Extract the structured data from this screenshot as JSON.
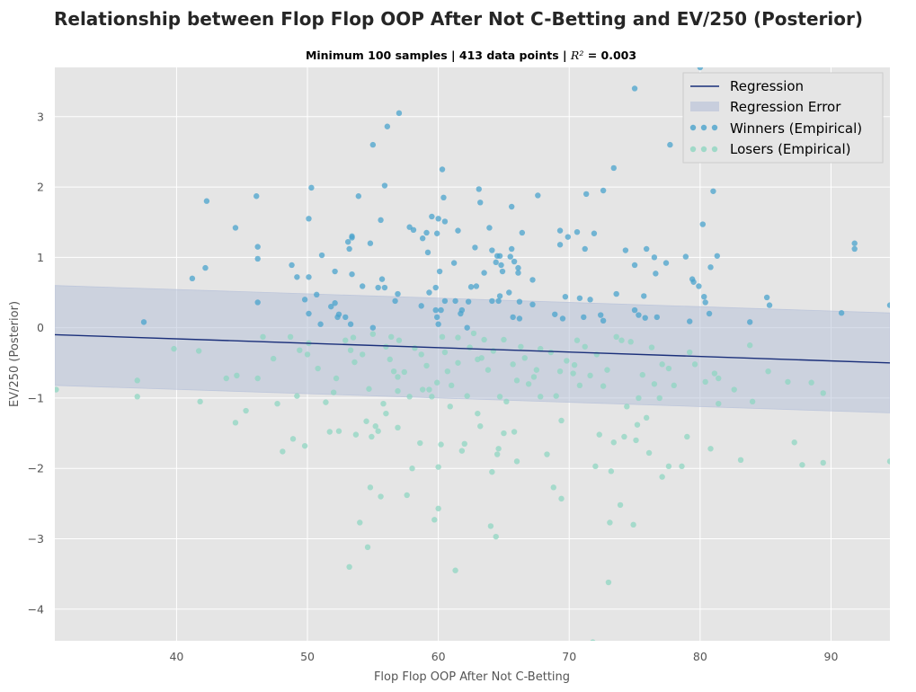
{
  "chart_data": {
    "type": "scatter",
    "title": "Relationship between Flop Flop OOP After Not C-Betting and EV/250 (Posterior)",
    "subtitle_text": "Minimum 100 samples | 413 data points | ",
    "subtitle_r2_symbol": "R²",
    "subtitle_r2_value": " =  0.003",
    "xlabel": "Flop Flop OOP After Not C-Betting",
    "ylabel": "EV/250 (Posterior)",
    "xlim": [
      30.7,
      94.5
    ],
    "ylim": [
      -4.45,
      3.7
    ],
    "xticks": [
      40,
      50,
      60,
      70,
      80,
      90
    ],
    "yticks": [
      -4,
      -3,
      -2,
      -1,
      0,
      1,
      2,
      3
    ],
    "ytick_labels": [
      "−4",
      "−3",
      "−2",
      "−1",
      "0",
      "1",
      "2",
      "3"
    ],
    "grid": true,
    "legend_position": "top-right",
    "legend": [
      "Regression",
      "Regression Error",
      "Winners (Empirical)",
      "Losers (Empirical)"
    ],
    "colors": {
      "background": "#e5e5e5",
      "grid": "#ffffff",
      "regression": "#1a2f7a",
      "error_band": "#b8c2d9",
      "winners": "#4aa3cc",
      "losers": "#8fd6c1"
    },
    "regression": {
      "x": [
        30.7,
        94.5
      ],
      "y": [
        -0.1,
        -0.5
      ]
    },
    "error_band": {
      "x": [
        30.7,
        94.5
      ],
      "upper": [
        0.6,
        0.21
      ],
      "lower": [
        -0.82,
        -1.21
      ]
    },
    "winners": [
      [
        37.5,
        0.08
      ],
      [
        41.2,
        0.7
      ],
      [
        42.2,
        0.85
      ],
      [
        42.3,
        1.8
      ],
      [
        44.5,
        1.42
      ],
      [
        46.1,
        1.87
      ],
      [
        46.2,
        1.15
      ],
      [
        46.2,
        0.98
      ],
      [
        46.2,
        0.36
      ],
      [
        48.8,
        0.89
      ],
      [
        49.2,
        0.72
      ],
      [
        49.8,
        0.4
      ],
      [
        50.1,
        0.2
      ],
      [
        50.1,
        0.72
      ],
      [
        50.1,
        1.55
      ],
      [
        50.3,
        1.99
      ],
      [
        50.7,
        0.47
      ],
      [
        51.0,
        0.05
      ],
      [
        51.1,
        1.03
      ],
      [
        51.8,
        0.3
      ],
      [
        52.1,
        0.35
      ],
      [
        52.1,
        0.8
      ],
      [
        52.3,
        0.15
      ],
      [
        52.4,
        0.19
      ],
      [
        52.9,
        0.15
      ],
      [
        53.1,
        1.22
      ],
      [
        53.2,
        1.12
      ],
      [
        53.3,
        0.05
      ],
      [
        53.4,
        1.3
      ],
      [
        53.4,
        0.76
      ],
      [
        53.9,
        1.87
      ],
      [
        54.2,
        0.59
      ],
      [
        54.8,
        1.2
      ],
      [
        55.0,
        2.6
      ],
      [
        55.0,
        0.0
      ],
      [
        55.4,
        0.57
      ],
      [
        55.6,
        1.53
      ],
      [
        55.7,
        0.69
      ],
      [
        55.9,
        2.02
      ],
      [
        55.9,
        0.57
      ],
      [
        56.1,
        2.86
      ],
      [
        56.7,
        0.38
      ],
      [
        56.9,
        0.48
      ],
      [
        57.0,
        3.05
      ],
      [
        57.8,
        1.43
      ],
      [
        58.7,
        0.31
      ],
      [
        58.8,
        1.27
      ],
      [
        59.1,
        1.35
      ],
      [
        59.2,
        1.07
      ],
      [
        59.3,
        0.5
      ],
      [
        59.5,
        1.58
      ],
      [
        59.8,
        0.57
      ],
      [
        59.8,
        0.25
      ],
      [
        59.9,
        0.15
      ],
      [
        59.9,
        1.34
      ],
      [
        60.0,
        0.05
      ],
      [
        60.0,
        1.55
      ],
      [
        60.1,
        0.8
      ],
      [
        60.2,
        0.25
      ],
      [
        60.3,
        2.25
      ],
      [
        60.4,
        1.85
      ],
      [
        60.5,
        1.51
      ],
      [
        60.5,
        0.38
      ],
      [
        61.2,
        0.92
      ],
      [
        61.3,
        0.38
      ],
      [
        61.5,
        1.38
      ],
      [
        61.7,
        0.2
      ],
      [
        61.8,
        0.25
      ],
      [
        62.2,
        0.0
      ],
      [
        62.3,
        0.37
      ],
      [
        62.5,
        0.58
      ],
      [
        62.8,
        1.14
      ],
      [
        63.1,
        1.97
      ],
      [
        63.2,
        1.78
      ],
      [
        63.5,
        0.78
      ],
      [
        63.9,
        1.42
      ],
      [
        64.1,
        0.38
      ],
      [
        64.1,
        1.1
      ],
      [
        64.4,
        0.93
      ],
      [
        64.5,
        1.02
      ],
      [
        64.6,
        0.38
      ],
      [
        64.7,
        1.02
      ],
      [
        64.8,
        0.89
      ],
      [
        64.9,
        0.8
      ],
      [
        65.4,
        0.5
      ],
      [
        65.5,
        1.01
      ],
      [
        65.6,
        1.12
      ],
      [
        65.8,
        0.94
      ],
      [
        65.6,
        1.72
      ],
      [
        65.7,
        0.15
      ],
      [
        66.1,
        0.85
      ],
      [
        66.1,
        0.78
      ],
      [
        66.2,
        0.37
      ],
      [
        66.2,
        0.13
      ],
      [
        66.4,
        1.35
      ],
      [
        67.2,
        0.68
      ],
      [
        67.2,
        0.33
      ],
      [
        67.6,
        1.88
      ],
      [
        69.3,
        1.18
      ],
      [
        69.3,
        1.38
      ],
      [
        69.5,
        0.13
      ],
      [
        69.7,
        0.44
      ],
      [
        69.9,
        1.29
      ],
      [
        70.6,
        1.36
      ],
      [
        70.8,
        0.42
      ],
      [
        71.1,
        0.15
      ],
      [
        71.2,
        1.12
      ],
      [
        71.3,
        1.9
      ],
      [
        71.6,
        0.4
      ],
      [
        71.9,
        1.34
      ],
      [
        72.4,
        0.18
      ],
      [
        72.6,
        0.1
      ],
      [
        72.6,
        1.95
      ],
      [
        73.4,
        2.27
      ],
      [
        73.6,
        0.48
      ],
      [
        74.3,
        1.1
      ],
      [
        75.0,
        3.4
      ],
      [
        75.0,
        0.25
      ],
      [
        75.0,
        0.89
      ],
      [
        75.3,
        0.18
      ],
      [
        75.7,
        0.45
      ],
      [
        75.8,
        0.14
      ],
      [
        75.9,
        1.12
      ],
      [
        76.5,
        1.0
      ],
      [
        76.6,
        0.77
      ],
      [
        76.7,
        0.15
      ],
      [
        77.7,
        2.6
      ],
      [
        78.9,
        1.01
      ],
      [
        79.2,
        0.09
      ],
      [
        79.4,
        0.69
      ],
      [
        79.5,
        0.65
      ],
      [
        79.9,
        0.59
      ],
      [
        80.0,
        3.7
      ],
      [
        80.2,
        1.47
      ],
      [
        80.3,
        0.44
      ],
      [
        80.4,
        0.36
      ],
      [
        80.7,
        0.2
      ],
      [
        80.8,
        0.86
      ],
      [
        81.0,
        1.94
      ],
      [
        81.3,
        1.02
      ],
      [
        83.8,
        0.08
      ],
      [
        85.1,
        0.43
      ],
      [
        85.3,
        0.32
      ],
      [
        90.8,
        0.21
      ],
      [
        91.8,
        1.2
      ],
      [
        91.8,
        1.12
      ],
      [
        94.5,
        0.32
      ],
      [
        53.4,
        1.28
      ],
      [
        62.9,
        0.59
      ],
      [
        68.9,
        0.19
      ],
      [
        77.4,
        0.92
      ],
      [
        58.1,
        1.39
      ],
      [
        64.7,
        0.45
      ]
    ],
    "losers": [
      [
        30.8,
        -0.88
      ],
      [
        37.0,
        -0.75
      ],
      [
        37.0,
        -0.98
      ],
      [
        39.8,
        -0.3
      ],
      [
        41.7,
        -0.33
      ],
      [
        41.8,
        -1.05
      ],
      [
        43.8,
        -0.72
      ],
      [
        44.5,
        -1.35
      ],
      [
        44.6,
        -0.68
      ],
      [
        45.3,
        -1.18
      ],
      [
        46.2,
        -0.72
      ],
      [
        46.6,
        -0.13
      ],
      [
        47.4,
        -0.44
      ],
      [
        47.7,
        -1.08
      ],
      [
        48.1,
        -1.76
      ],
      [
        48.7,
        -0.13
      ],
      [
        48.9,
        -1.58
      ],
      [
        49.2,
        -0.97
      ],
      [
        49.4,
        -0.32
      ],
      [
        49.8,
        -1.68
      ],
      [
        50.0,
        -0.38
      ],
      [
        50.1,
        -0.22
      ],
      [
        50.8,
        -0.58
      ],
      [
        51.4,
        -1.06
      ],
      [
        51.7,
        -1.48
      ],
      [
        52.0,
        -0.92
      ],
      [
        52.2,
        -0.72
      ],
      [
        52.4,
        -1.47
      ],
      [
        52.9,
        -0.18
      ],
      [
        53.2,
        -3.4
      ],
      [
        53.3,
        -0.32
      ],
      [
        53.5,
        -0.14
      ],
      [
        53.6,
        -0.49
      ],
      [
        53.7,
        -1.52
      ],
      [
        54.0,
        -2.77
      ],
      [
        54.2,
        -0.38
      ],
      [
        54.5,
        -1.33
      ],
      [
        54.6,
        -3.12
      ],
      [
        54.7,
        -0.87
      ],
      [
        54.8,
        -2.27
      ],
      [
        54.9,
        -1.55
      ],
      [
        55.0,
        -0.09
      ],
      [
        55.2,
        -1.4
      ],
      [
        55.4,
        -1.47
      ],
      [
        55.6,
        -2.4
      ],
      [
        55.8,
        -1.08
      ],
      [
        56.0,
        -0.27
      ],
      [
        56.0,
        -1.22
      ],
      [
        56.3,
        -0.45
      ],
      [
        56.4,
        -0.13
      ],
      [
        56.6,
        -0.62
      ],
      [
        56.9,
        -0.9
      ],
      [
        56.9,
        -1.42
      ],
      [
        57.0,
        -0.18
      ],
      [
        57.4,
        -0.63
      ],
      [
        57.6,
        -2.38
      ],
      [
        57.8,
        -0.98
      ],
      [
        58.0,
        -2.0
      ],
      [
        58.2,
        -0.29
      ],
      [
        58.6,
        -1.64
      ],
      [
        58.8,
        -0.88
      ],
      [
        59.1,
        -0.54
      ],
      [
        59.3,
        -0.88
      ],
      [
        59.5,
        -0.98
      ],
      [
        59.7,
        -2.73
      ],
      [
        59.9,
        -0.78
      ],
      [
        60.0,
        -2.57
      ],
      [
        60.0,
        -1.98
      ],
      [
        60.2,
        -1.66
      ],
      [
        60.5,
        -0.35
      ],
      [
        60.7,
        -0.62
      ],
      [
        60.9,
        -1.12
      ],
      [
        61.0,
        -0.82
      ],
      [
        61.3,
        -3.45
      ],
      [
        61.5,
        -0.14
      ],
      [
        61.5,
        -0.5
      ],
      [
        61.8,
        -1.75
      ],
      [
        62.0,
        -1.65
      ],
      [
        62.2,
        -0.97
      ],
      [
        62.4,
        -0.28
      ],
      [
        62.7,
        -0.08
      ],
      [
        63.0,
        -1.22
      ],
      [
        63.2,
        -1.4
      ],
      [
        63.3,
        -0.43
      ],
      [
        63.5,
        -0.17
      ],
      [
        63.8,
        -0.6
      ],
      [
        64.0,
        -2.82
      ],
      [
        64.1,
        -2.05
      ],
      [
        64.2,
        -0.33
      ],
      [
        64.4,
        -2.97
      ],
      [
        64.5,
        -1.8
      ],
      [
        64.6,
        -1.72
      ],
      [
        64.7,
        -0.98
      ],
      [
        65.0,
        -0.17
      ],
      [
        65.0,
        -1.5
      ],
      [
        65.2,
        -1.05
      ],
      [
        65.7,
        -0.52
      ],
      [
        65.8,
        -1.48
      ],
      [
        66.0,
        -1.9
      ],
      [
        66.3,
        -0.27
      ],
      [
        66.6,
        -0.43
      ],
      [
        66.9,
        -0.8
      ],
      [
        67.3,
        -0.7
      ],
      [
        67.5,
        -0.6
      ],
      [
        67.8,
        -0.98
      ],
      [
        68.3,
        -1.8
      ],
      [
        68.6,
        -0.35
      ],
      [
        68.8,
        -2.27
      ],
      [
        69.0,
        -0.97
      ],
      [
        69.3,
        -0.62
      ],
      [
        69.4,
        -2.43
      ],
      [
        69.4,
        -1.32
      ],
      [
        69.8,
        -0.47
      ],
      [
        70.4,
        -0.53
      ],
      [
        70.6,
        -0.18
      ],
      [
        70.8,
        -0.82
      ],
      [
        71.2,
        -0.27
      ],
      [
        71.6,
        -0.68
      ],
      [
        71.8,
        -4.47
      ],
      [
        72.0,
        -1.97
      ],
      [
        72.3,
        -1.52
      ],
      [
        72.6,
        -0.83
      ],
      [
        72.9,
        -0.6
      ],
      [
        73.0,
        -3.62
      ],
      [
        73.1,
        -2.77
      ],
      [
        73.2,
        -2.04
      ],
      [
        73.4,
        -1.63
      ],
      [
        73.6,
        -0.13
      ],
      [
        73.9,
        -2.52
      ],
      [
        74.0,
        -0.18
      ],
      [
        74.2,
        -1.55
      ],
      [
        74.4,
        -1.12
      ],
      [
        74.7,
        -0.2
      ],
      [
        74.9,
        -2.8
      ],
      [
        75.1,
        -1.6
      ],
      [
        75.2,
        -1.38
      ],
      [
        75.3,
        -1.0
      ],
      [
        75.6,
        -0.67
      ],
      [
        75.9,
        -1.28
      ],
      [
        76.1,
        -1.78
      ],
      [
        76.3,
        -0.28
      ],
      [
        76.5,
        -0.8
      ],
      [
        76.9,
        -1.0
      ],
      [
        77.1,
        -2.12
      ],
      [
        77.1,
        -0.52
      ],
      [
        77.6,
        -0.58
      ],
      [
        77.6,
        -1.97
      ],
      [
        78.0,
        -0.82
      ],
      [
        78.6,
        -1.97
      ],
      [
        79.0,
        -1.55
      ],
      [
        79.2,
        -0.35
      ],
      [
        79.6,
        -0.52
      ],
      [
        80.4,
        -0.77
      ],
      [
        80.8,
        -1.72
      ],
      [
        81.1,
        -0.65
      ],
      [
        81.4,
        -0.72
      ],
      [
        81.4,
        -1.08
      ],
      [
        82.6,
        -0.88
      ],
      [
        83.1,
        -1.88
      ],
      [
        84.0,
        -1.05
      ],
      [
        85.2,
        -0.62
      ],
      [
        86.7,
        -0.77
      ],
      [
        87.2,
        -1.63
      ],
      [
        87.8,
        -1.95
      ],
      [
        88.5,
        -0.78
      ],
      [
        89.4,
        -1.92
      ],
      [
        89.4,
        -0.93
      ],
      [
        94.5,
        -1.9
      ],
      [
        83.8,
        -0.25
      ],
      [
        72.1,
        -0.38
      ],
      [
        60.3,
        -0.13
      ],
      [
        56.9,
        -0.7
      ],
      [
        66.0,
        -0.75
      ],
      [
        58.7,
        -0.38
      ],
      [
        63.0,
        -0.45
      ],
      [
        67.8,
        -0.3
      ],
      [
        70.3,
        -0.65
      ]
    ]
  }
}
